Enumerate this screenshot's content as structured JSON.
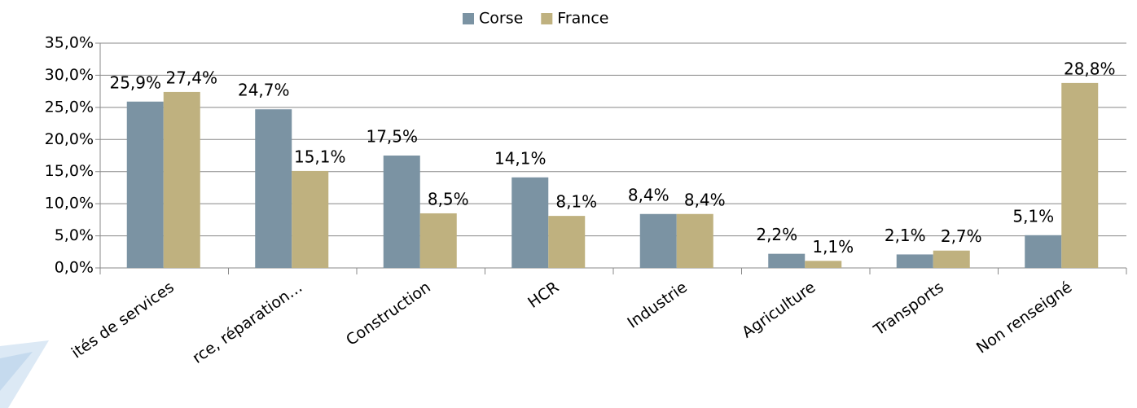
{
  "chart_data": {
    "type": "bar",
    "categories": [
      "ités de services",
      "rce, réparation…",
      "Construction",
      "HCR",
      "Industrie",
      "Agriculture",
      "Transports",
      "Non renseigné"
    ],
    "series": [
      {
        "name": "Corse",
        "color": "#7b93a3",
        "values": [
          25.9,
          24.7,
          17.5,
          14.1,
          8.4,
          2.2,
          2.1,
          5.1
        ],
        "value_labels": [
          "25,9%",
          "24,7%",
          "17,5%",
          "14,1%",
          "8,4%",
          "2,2%",
          "2,1%",
          "5,1%"
        ]
      },
      {
        "name": "France",
        "color": "#bfb17f",
        "values": [
          27.4,
          15.1,
          8.5,
          8.1,
          8.4,
          1.1,
          2.7,
          28.8
        ],
        "value_labels": [
          "27,4%",
          "15,1%",
          "8,5%",
          "8,1%",
          "8,4%",
          "1,1%",
          "2,7%",
          "28,8%"
        ]
      }
    ],
    "ylim": [
      0,
      35
    ],
    "yticks": [
      {
        "value": 0,
        "label": "0,0%"
      },
      {
        "value": 5,
        "label": "5,0%"
      },
      {
        "value": 10,
        "label": "10,0%"
      },
      {
        "value": 15,
        "label": "15,0%"
      },
      {
        "value": 20,
        "label": "20,0%"
      },
      {
        "value": 25,
        "label": "25,0%"
      },
      {
        "value": 30,
        "label": "30,0%"
      },
      {
        "value": 35,
        "label": "35,0%"
      }
    ],
    "grid": true,
    "legend": "top"
  }
}
